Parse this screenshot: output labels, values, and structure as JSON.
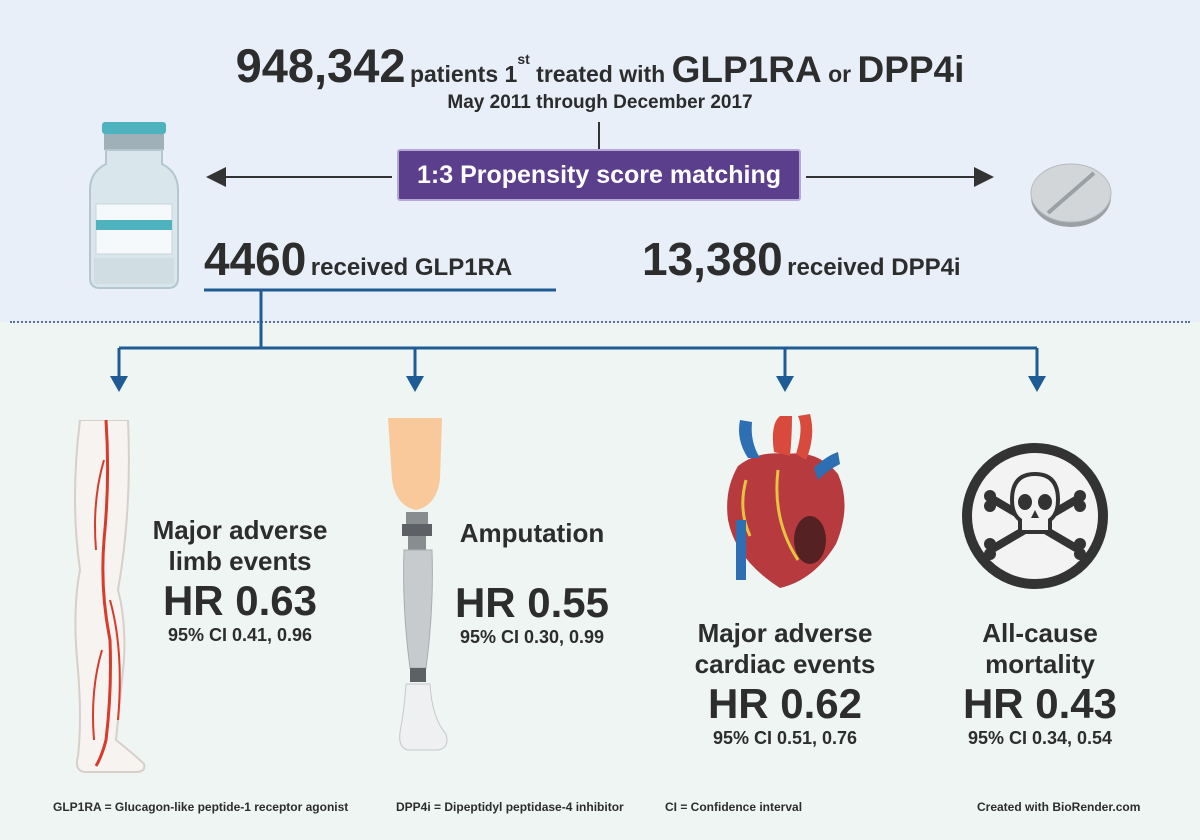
{
  "header": {
    "patient_count": "948,342",
    "phrase_patients": "patients 1",
    "superscript": "st",
    "phrase_treated": " treated with ",
    "drug_a": "GLP1RA",
    "conjunction": " or ",
    "drug_b": "DPP4i",
    "date_range": "May 2011 through December 2017"
  },
  "matching": {
    "label": "1:3 Propensity score matching"
  },
  "groups": {
    "glp1ra": {
      "count": "4460",
      "text": "received GLP1RA"
    },
    "dpp4i": {
      "count": "13,380",
      "text": "received DPP4i"
    }
  },
  "outcomes": [
    {
      "title_line1": "Major adverse",
      "title_line2": "limb events",
      "hr": "HR 0.63",
      "ci": "95% CI 0.41, 0.96",
      "icon": "leg-arteries-icon"
    },
    {
      "title_line1": "Amputation",
      "title_line2": "",
      "hr": "HR 0.55",
      "ci": "95% CI 0.30, 0.99",
      "icon": "prosthetic-leg-icon"
    },
    {
      "title_line1": "Major adverse",
      "title_line2": "cardiac events",
      "hr": "HR 0.62",
      "ci": "95% CI 0.51, 0.76",
      "icon": "heart-icon"
    },
    {
      "title_line1": "All-cause",
      "title_line2": "mortality",
      "hr": "HR 0.43",
      "ci": "95% CI 0.34, 0.54",
      "icon": "skull-crossbones-icon"
    }
  ],
  "footer": {
    "def_glp1ra": "GLP1RA = Glucagon-like peptide-1 receptor agonist",
    "def_dpp4i": "DPP4i = Dipeptidyl peptidase-4 inhibitor",
    "def_ci": "CI = Confidence interval",
    "credit": "Created with BioRender.com"
  },
  "icons": {
    "vial": "vial-icon",
    "tablet": "tablet-icon"
  },
  "colors": {
    "accent_purple": "#5b3f8c",
    "connector_blue": "#1f5b94",
    "top_panel": "#e8eff8",
    "bottom_panel": "#eef5f3"
  }
}
